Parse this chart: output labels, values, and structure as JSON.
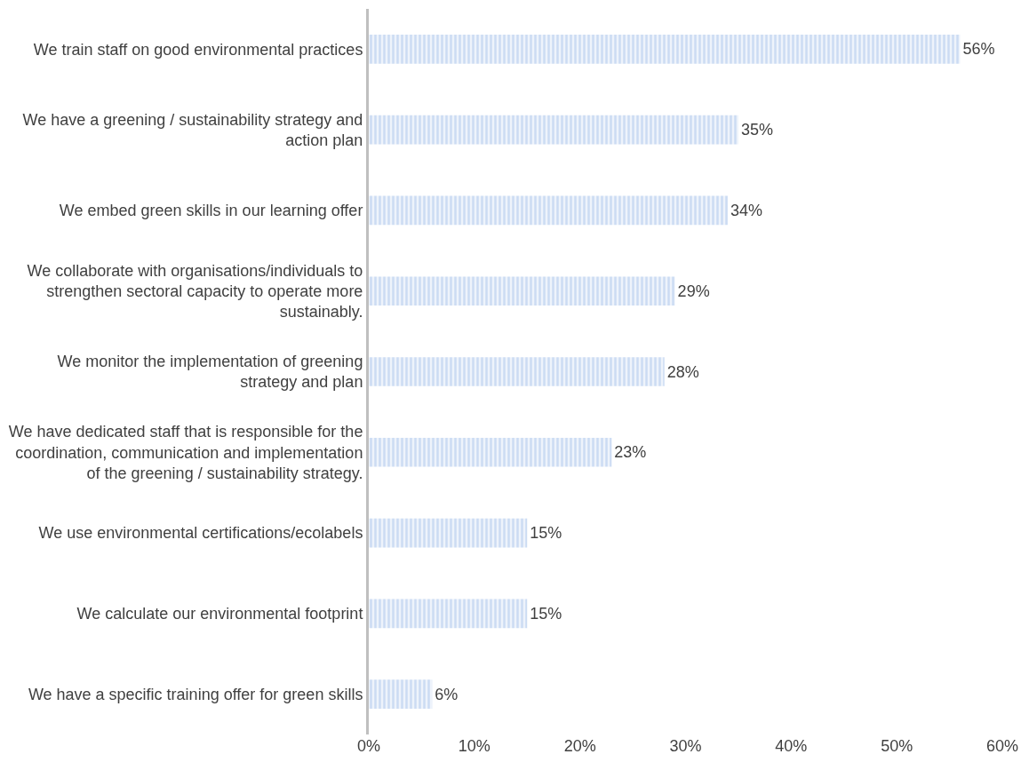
{
  "chart_data": {
    "type": "bar",
    "orientation": "horizontal",
    "categories": [
      "We train staff on good environmental practices",
      "We have a greening / sustainability strategy and\naction plan",
      "We embed green skills in our learning offer",
      "We collaborate with organisations/individuals to\nstrengthen sectoral capacity to operate more\nsustainably.",
      "We monitor the implementation of greening\nstrategy and plan",
      "We have dedicated staff that is responsible for the\ncoordination, communication and implementation\nof the greening / sustainability strategy.",
      "We use environmental certifications/ecolabels",
      "We calculate our environmental footprint",
      "We have a specific training offer for green skills"
    ],
    "values": [
      56,
      35,
      34,
      29,
      28,
      23,
      15,
      15,
      6
    ],
    "value_labels": [
      "56%",
      "35%",
      "34%",
      "29%",
      "28%",
      "23%",
      "15%",
      "15%",
      "6%"
    ],
    "color": "#a9c4eb",
    "xlim": [
      0,
      60
    ],
    "xticks": [
      {
        "value": 0,
        "label": "0%"
      },
      {
        "value": 10,
        "label": "10%"
      },
      {
        "value": 20,
        "label": "20%"
      },
      {
        "value": 30,
        "label": "30%"
      },
      {
        "value": 40,
        "label": "40%"
      },
      {
        "value": 50,
        "label": "50%"
      },
      {
        "value": 60,
        "label": "60%"
      }
    ],
    "legend": false
  }
}
